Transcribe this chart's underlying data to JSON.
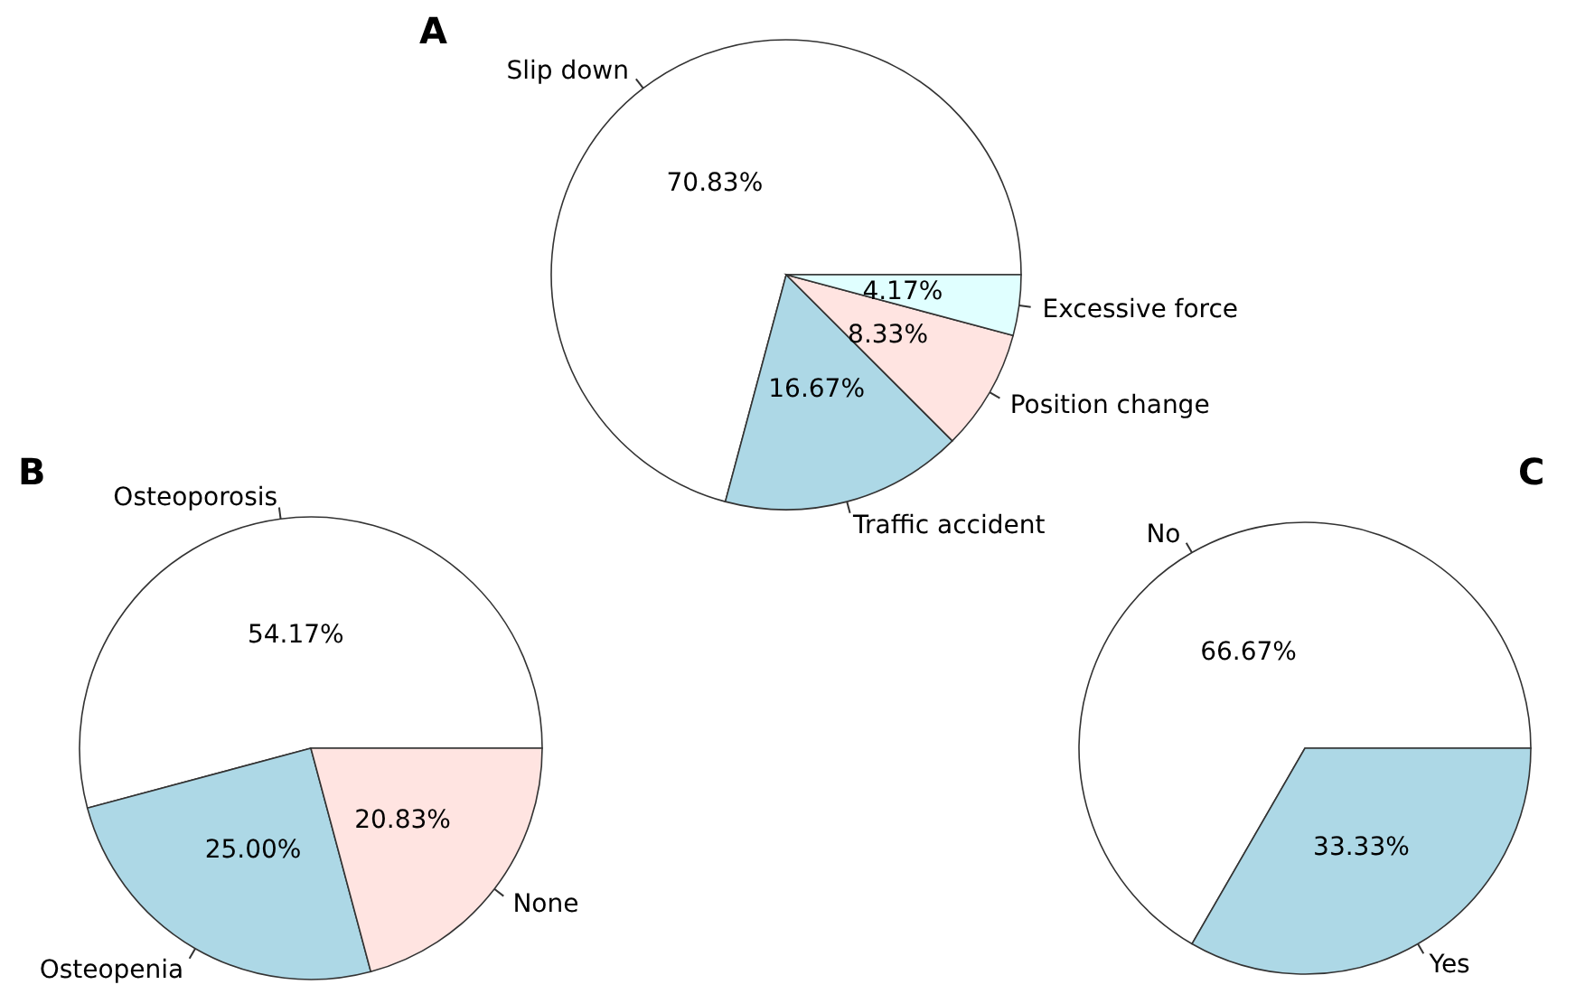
{
  "chart_data": [
    {
      "type": "pie",
      "title": "A",
      "categories": [
        "Slip down",
        "Traffic accident",
        "Position change",
        "Excessive force"
      ],
      "values": [
        70.83,
        16.67,
        8.33,
        4.17
      ],
      "colors": [
        "#ffffff",
        "#add8e6",
        "#ffe4e1",
        "#e0ffff"
      ],
      "value_labels": [
        "70.83%",
        "16.67%",
        "8.33%",
        "4.17%"
      ]
    },
    {
      "type": "pie",
      "title": "B",
      "categories": [
        "Osteoporosis",
        "Osteopenia",
        "None"
      ],
      "values": [
        54.17,
        25.0,
        20.83
      ],
      "colors": [
        "#ffffff",
        "#add8e6",
        "#ffe4e1"
      ],
      "value_labels": [
        "54.17%",
        "25.00%",
        "20.83%"
      ]
    },
    {
      "type": "pie",
      "title": "C",
      "categories": [
        "No",
        "Yes"
      ],
      "values": [
        66.67,
        33.33
      ],
      "colors": [
        "#ffffff",
        "#add8e6"
      ],
      "value_labels": [
        "66.67%",
        "33.33%"
      ]
    }
  ]
}
